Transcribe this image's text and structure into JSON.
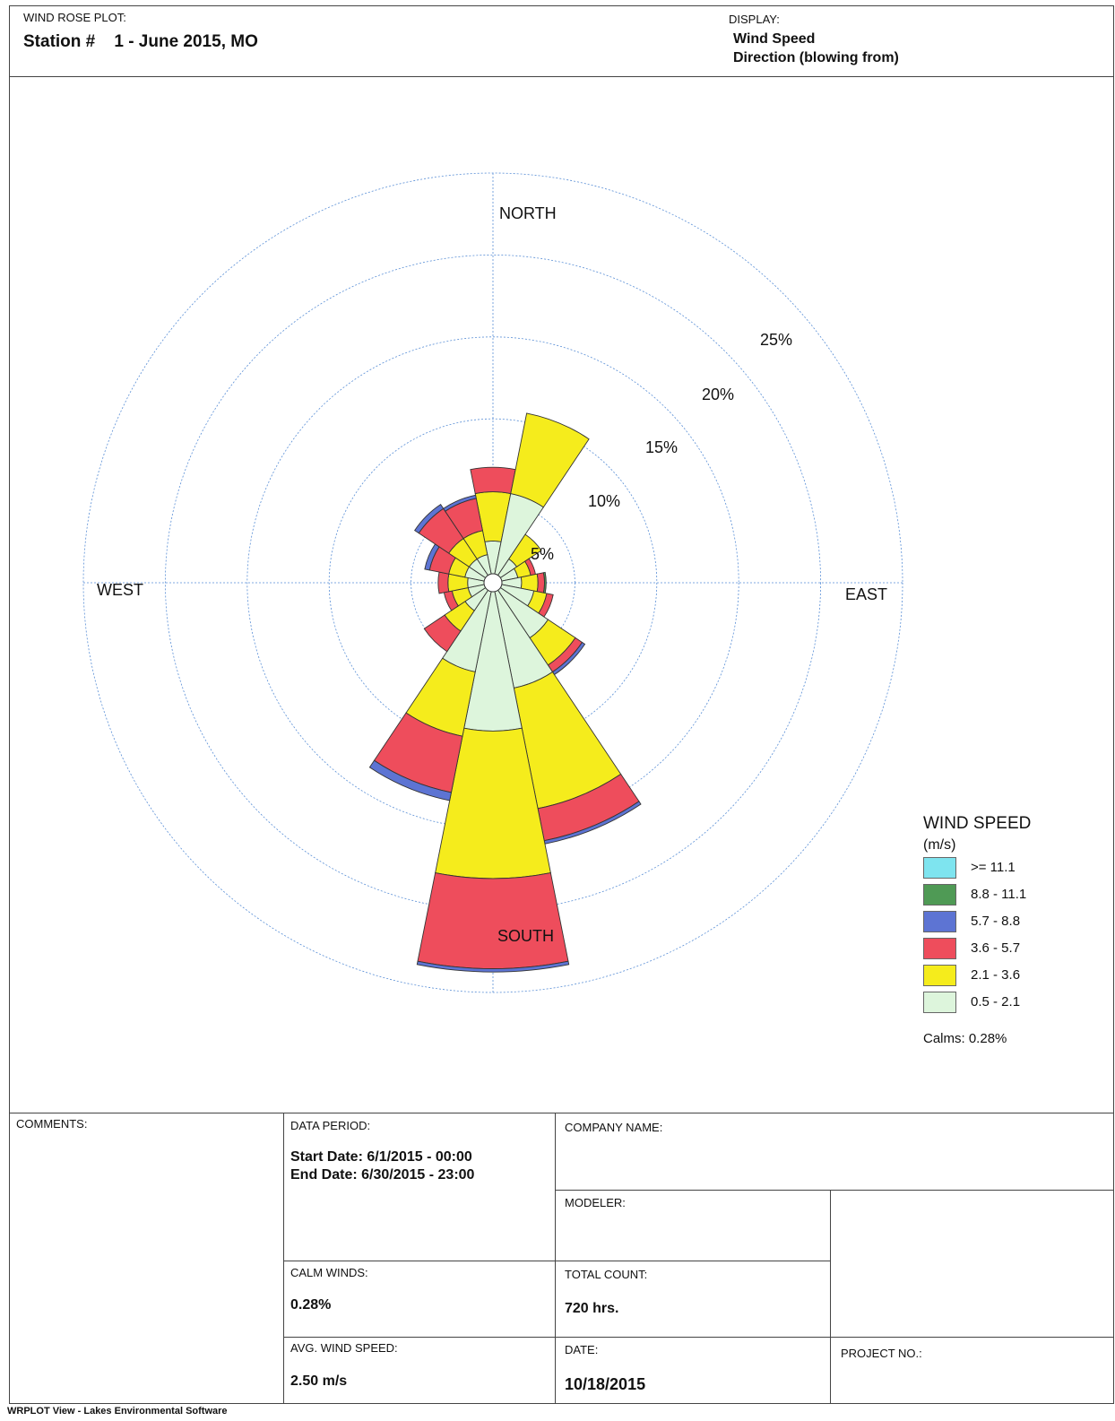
{
  "header": {
    "plot_label": "WIND ROSE PLOT:",
    "station": "Station #    1 - June 2015, MO",
    "display_label": "DISPLAY:",
    "display_value": "Wind Speed",
    "display_direction": "Direction (blowing from)"
  },
  "chart_data": {
    "type": "wind-rose",
    "direction_labels": {
      "north": "NORTH",
      "east": "EAST",
      "south": "SOUTH",
      "west": "WEST"
    },
    "ring_labels": [
      "5%",
      "10%",
      "15%",
      "20%",
      "25%"
    ],
    "ring_values": [
      5,
      10,
      15,
      20,
      25
    ],
    "max_ring": 25,
    "sector_directions_deg": [
      0,
      22.5,
      45,
      67.5,
      90,
      112.5,
      135,
      157.5,
      180,
      202.5,
      225,
      247.5,
      270,
      292.5,
      315,
      337.5
    ],
    "speed_classes": [
      "0.5 - 2.1",
      "2.1 - 3.6",
      "3.6 - 5.7",
      "5.7 - 8.8",
      "8.8 - 11.1",
      ">= 11.1"
    ],
    "class_colors": [
      "#ddf5dc",
      "#f5ec1c",
      "#ee4d5c",
      "#5d74d3",
      "#4f9a55",
      "#7ee4ef"
    ],
    "sectors": [
      {
        "dir": 0,
        "values": [
          2.0,
          3.0,
          1.5,
          0,
          0,
          0
        ]
      },
      {
        "dir": 22.5,
        "values": [
          5.0,
          5.0,
          0,
          0,
          0,
          0
        ]
      },
      {
        "dir": 45,
        "values": [
          1.2,
          1.8,
          0,
          0,
          0,
          0
        ]
      },
      {
        "dir": 67.5,
        "values": [
          1.0,
          0.8,
          0.3,
          0,
          0,
          0
        ]
      },
      {
        "dir": 90,
        "values": [
          1.2,
          1.0,
          0.4,
          0,
          0.1,
          0
        ]
      },
      {
        "dir": 112.5,
        "values": [
          2.0,
          0.8,
          0.4,
          0,
          0,
          0
        ]
      },
      {
        "dir": 135,
        "values": [
          3.5,
          2.0,
          0.5,
          0.2,
          0,
          0
        ]
      },
      {
        "dir": 157.5,
        "values": [
          6.0,
          7.5,
          2.0,
          0.2,
          0,
          0
        ]
      },
      {
        "dir": 180,
        "values": [
          8.5,
          9.0,
          5.5,
          0.2,
          0,
          0
        ]
      },
      {
        "dir": 202.5,
        "values": [
          5.0,
          4.0,
          3.5,
          0.5,
          0,
          0
        ]
      },
      {
        "dir": 225,
        "values": [
          1.5,
          1.5,
          1.5,
          0,
          0,
          0
        ]
      },
      {
        "dir": 247.5,
        "values": [
          1.0,
          1.0,
          0.5,
          0,
          0,
          0
        ]
      },
      {
        "dir": 270,
        "values": [
          1.0,
          1.2,
          0.6,
          0,
          0,
          0
        ]
      },
      {
        "dir": 292.5,
        "values": [
          1.2,
          1.0,
          1.2,
          0.3,
          0,
          0
        ]
      },
      {
        "dir": 315,
        "values": [
          1.2,
          1.5,
          2.2,
          0.3,
          0,
          0
        ]
      },
      {
        "dir": 337.5,
        "values": [
          1.2,
          1.5,
          2.0,
          0.2,
          0,
          0
        ]
      }
    ],
    "calms_pct": 0.28,
    "grid": true
  },
  "legend": {
    "title": "WIND SPEED",
    "unit": "(m/s)",
    "items": [
      {
        "label": ">= 11.1",
        "color": "#7ee4ef"
      },
      {
        "label": "8.8 - 11.1",
        "color": "#4f9a55"
      },
      {
        "label": "5.7 -  8.8",
        "color": "#5d74d3"
      },
      {
        "label": "3.6 -  5.7",
        "color": "#ee4d5c"
      },
      {
        "label": "2.1 -  3.6",
        "color": "#f5ec1c"
      },
      {
        "label": "0.5 -  2.1",
        "color": "#ddf5dc"
      }
    ],
    "calms": "Calms: 0.28%"
  },
  "table": {
    "comments_label": "COMMENTS:",
    "data_period_label": "DATA PERIOD:",
    "start_date": "Start Date: 6/1/2015 - 00:00",
    "end_date": "End Date: 6/30/2015 - 23:00",
    "company_name_label": "COMPANY NAME:",
    "modeler_label": "MODELER:",
    "calm_winds_label": "CALM WINDS:",
    "calm_winds_value": "0.28%",
    "total_count_label": "TOTAL COUNT:",
    "total_count_value": "720 hrs.",
    "avg_speed_label": "AVG. WIND SPEED:",
    "avg_speed_value": "2.50 m/s",
    "date_label": "DATE:",
    "date_value": "10/18/2015",
    "project_no_label": "PROJECT NO.:"
  },
  "footer": "WRPLOT View - Lakes Environmental Software"
}
